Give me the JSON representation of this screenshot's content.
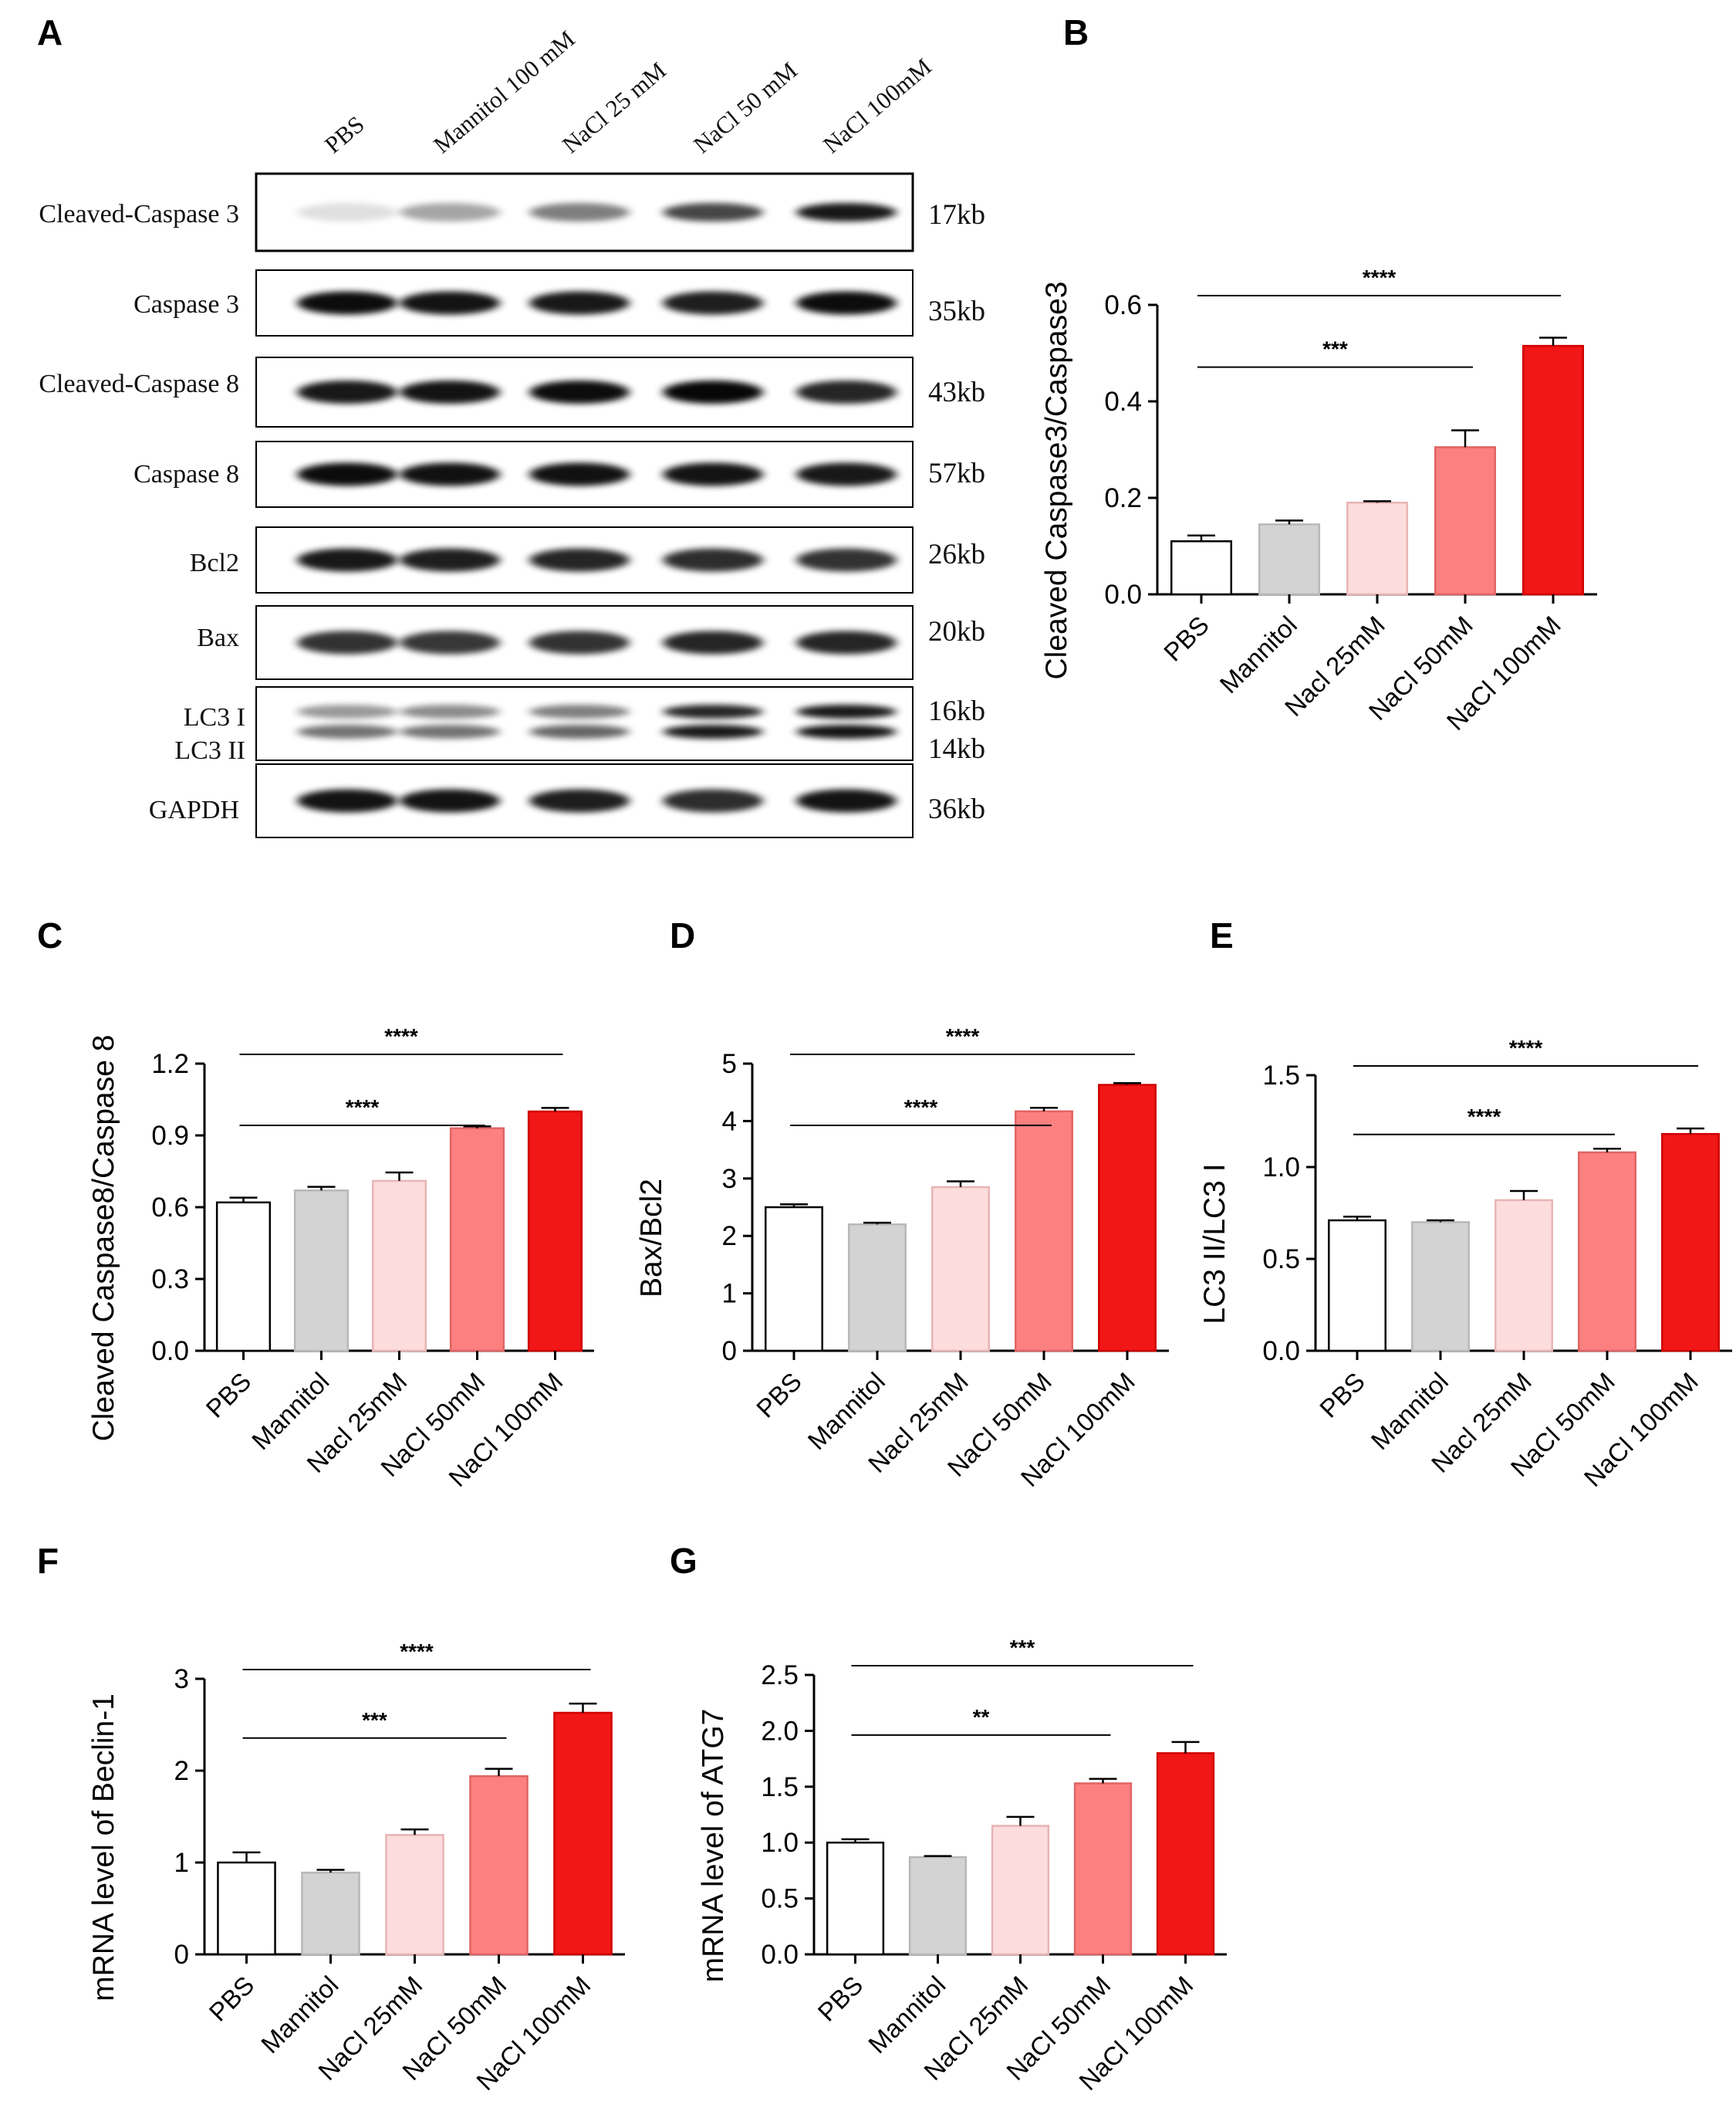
{
  "panels": {
    "A": "A",
    "B": "B",
    "C": "C",
    "D": "D",
    "E": "E",
    "F": "F",
    "G": "G"
  },
  "blot": {
    "lanes": [
      "PBS",
      "Mannitol 100 mM",
      "NaCl 25 mM",
      "NaCl 50 mM",
      "NaCl 100mM"
    ],
    "rows": [
      {
        "label": "Cleaved-Caspase 3",
        "kb": "17kb",
        "intensities": [
          0.12,
          0.35,
          0.5,
          0.72,
          0.9
        ]
      },
      {
        "label": "Caspase 3",
        "kb": "35kb",
        "intensities": [
          0.95,
          0.92,
          0.9,
          0.88,
          0.95
        ]
      },
      {
        "label": "Cleaved-Caspase 8",
        "kb": "43kb",
        "intensities": [
          0.9,
          0.92,
          0.95,
          0.97,
          0.85
        ]
      },
      {
        "label": "Caspase 8",
        "kb": "57kb",
        "intensities": [
          0.95,
          0.93,
          0.93,
          0.92,
          0.9
        ]
      },
      {
        "label": "Bcl2",
        "kb": "26kb",
        "intensities": [
          0.9,
          0.88,
          0.85,
          0.82,
          0.8
        ]
      },
      {
        "label": "Bax",
        "kb": "20kb",
        "intensities": [
          0.8,
          0.78,
          0.8,
          0.85,
          0.85
        ]
      },
      {
        "label": "LC3 I",
        "label2": "LC3 II",
        "kb": "16kb",
        "kb2": "14kb",
        "intensities": [
          0.4,
          0.45,
          0.5,
          0.85,
          0.9
        ],
        "intensities2": [
          0.55,
          0.55,
          0.6,
          0.9,
          0.92
        ]
      },
      {
        "label": "GAPDH",
        "kb": "36kb",
        "intensities": [
          0.92,
          0.92,
          0.88,
          0.82,
          0.92
        ]
      }
    ]
  },
  "chart_data": [
    {
      "panel": "B",
      "type": "bar",
      "categories": [
        "PBS",
        "Mannitol",
        "Nacl 25mM",
        "NaCl 50mM",
        "NaCl 100mM"
      ],
      "values": [
        0.11,
        0.145,
        0.19,
        0.305,
        0.515
      ],
      "errors": [
        0.012,
        0.008,
        0.003,
        0.035,
        0.017
      ],
      "ylabel": "Cleaved Caspase3/Caspase3",
      "ylim": [
        0,
        0.6
      ],
      "yticks": [
        "0.0",
        "0.2",
        "0.4",
        "0.6"
      ],
      "significance": [
        {
          "label": "***",
          "from": 0,
          "to": 3
        },
        {
          "label": "****",
          "from": 0,
          "to": 4
        }
      ]
    },
    {
      "panel": "C",
      "type": "bar",
      "categories": [
        "PBS",
        "Mannitol",
        "Nacl 25mM",
        "NaCl 50mM",
        "NaCl 100mM"
      ],
      "values": [
        0.62,
        0.67,
        0.71,
        0.93,
        1.0
      ],
      "errors": [
        0.02,
        0.015,
        0.035,
        0.008,
        0.015
      ],
      "ylabel": "Cleaved Caspase8/Caspase 8",
      "ylim": [
        0,
        1.2
      ],
      "yticks": [
        "0.0",
        "0.3",
        "0.6",
        "0.9",
        "1.2"
      ],
      "significance": [
        {
          "label": "****",
          "from": 0,
          "to": 3
        },
        {
          "label": "****",
          "from": 0,
          "to": 4
        }
      ]
    },
    {
      "panel": "D",
      "type": "bar",
      "categories": [
        "PBS",
        "Mannitol",
        "Nacl 25mM",
        "NaCl 50mM",
        "NaCl 100mM"
      ],
      "values": [
        2.5,
        2.2,
        2.85,
        4.17,
        4.63
      ],
      "errors": [
        0.05,
        0.03,
        0.1,
        0.06,
        0.03
      ],
      "ylabel": "Bax/Bcl2",
      "ylim": [
        0,
        5
      ],
      "yticks": [
        "0",
        "1",
        "2",
        "3",
        "4",
        "5"
      ],
      "significance": [
        {
          "label": "****",
          "from": 0,
          "to": 3
        },
        {
          "label": "****",
          "from": 0,
          "to": 4
        }
      ]
    },
    {
      "panel": "E",
      "type": "bar",
      "categories": [
        "PBS",
        "Mannitol",
        "Nacl 25mM",
        "NaCl 50mM",
        "NaCl 100mM"
      ],
      "values": [
        0.71,
        0.7,
        0.82,
        1.08,
        1.18
      ],
      "errors": [
        0.02,
        0.01,
        0.05,
        0.02,
        0.03
      ],
      "ylabel": "LC3 II/LC3 I",
      "ylim": [
        0,
        1.5
      ],
      "yticks": [
        "0.0",
        "0.5",
        "1.0",
        "1.5"
      ],
      "significance": [
        {
          "label": "****",
          "from": 0,
          "to": 3
        },
        {
          "label": "****",
          "from": 0,
          "to": 4
        }
      ]
    },
    {
      "panel": "F",
      "type": "bar",
      "categories": [
        "PBS",
        "Mannitol",
        "NaCl 25mM",
        "NaCl 50mM",
        "NaCl 100mM"
      ],
      "values": [
        1.0,
        0.89,
        1.3,
        1.94,
        2.63
      ],
      "errors": [
        0.11,
        0.03,
        0.06,
        0.08,
        0.1
      ],
      "ylabel": "mRNA level of Beclin-1",
      "ylim": [
        0,
        3
      ],
      "yticks": [
        "0",
        "1",
        "2",
        "3"
      ],
      "significance": [
        {
          "label": "***",
          "from": 0,
          "to": 3
        },
        {
          "label": "****",
          "from": 0,
          "to": 4
        }
      ]
    },
    {
      "panel": "G",
      "type": "bar",
      "categories": [
        "PBS",
        "Mannitol",
        "NaCl 25mM",
        "NaCl 50mM",
        "NaCl 100mM"
      ],
      "values": [
        1.0,
        0.87,
        1.15,
        1.53,
        1.8
      ],
      "errors": [
        0.03,
        0.01,
        0.08,
        0.04,
        0.1
      ],
      "ylabel": "mRNA level of ATG7",
      "ylim": [
        0,
        2.5
      ],
      "yticks": [
        "0.0",
        "0.5",
        "1.0",
        "1.5",
        "2.0",
        "2.5"
      ],
      "significance": [
        {
          "label": "**",
          "from": 0,
          "to": 3
        },
        {
          "label": "***",
          "from": 0,
          "to": 4
        }
      ]
    }
  ],
  "colors": {
    "bar_fills": [
      "#ffffff",
      "#d3d3d3",
      "#fcdcdc",
      "#fc8080",
      "#f21717"
    ],
    "bar_strokes": [
      "#000000",
      "#b8b8b8",
      "#e8b4b4",
      "#e06464",
      "#d00000"
    ],
    "axis": "#000000"
  }
}
